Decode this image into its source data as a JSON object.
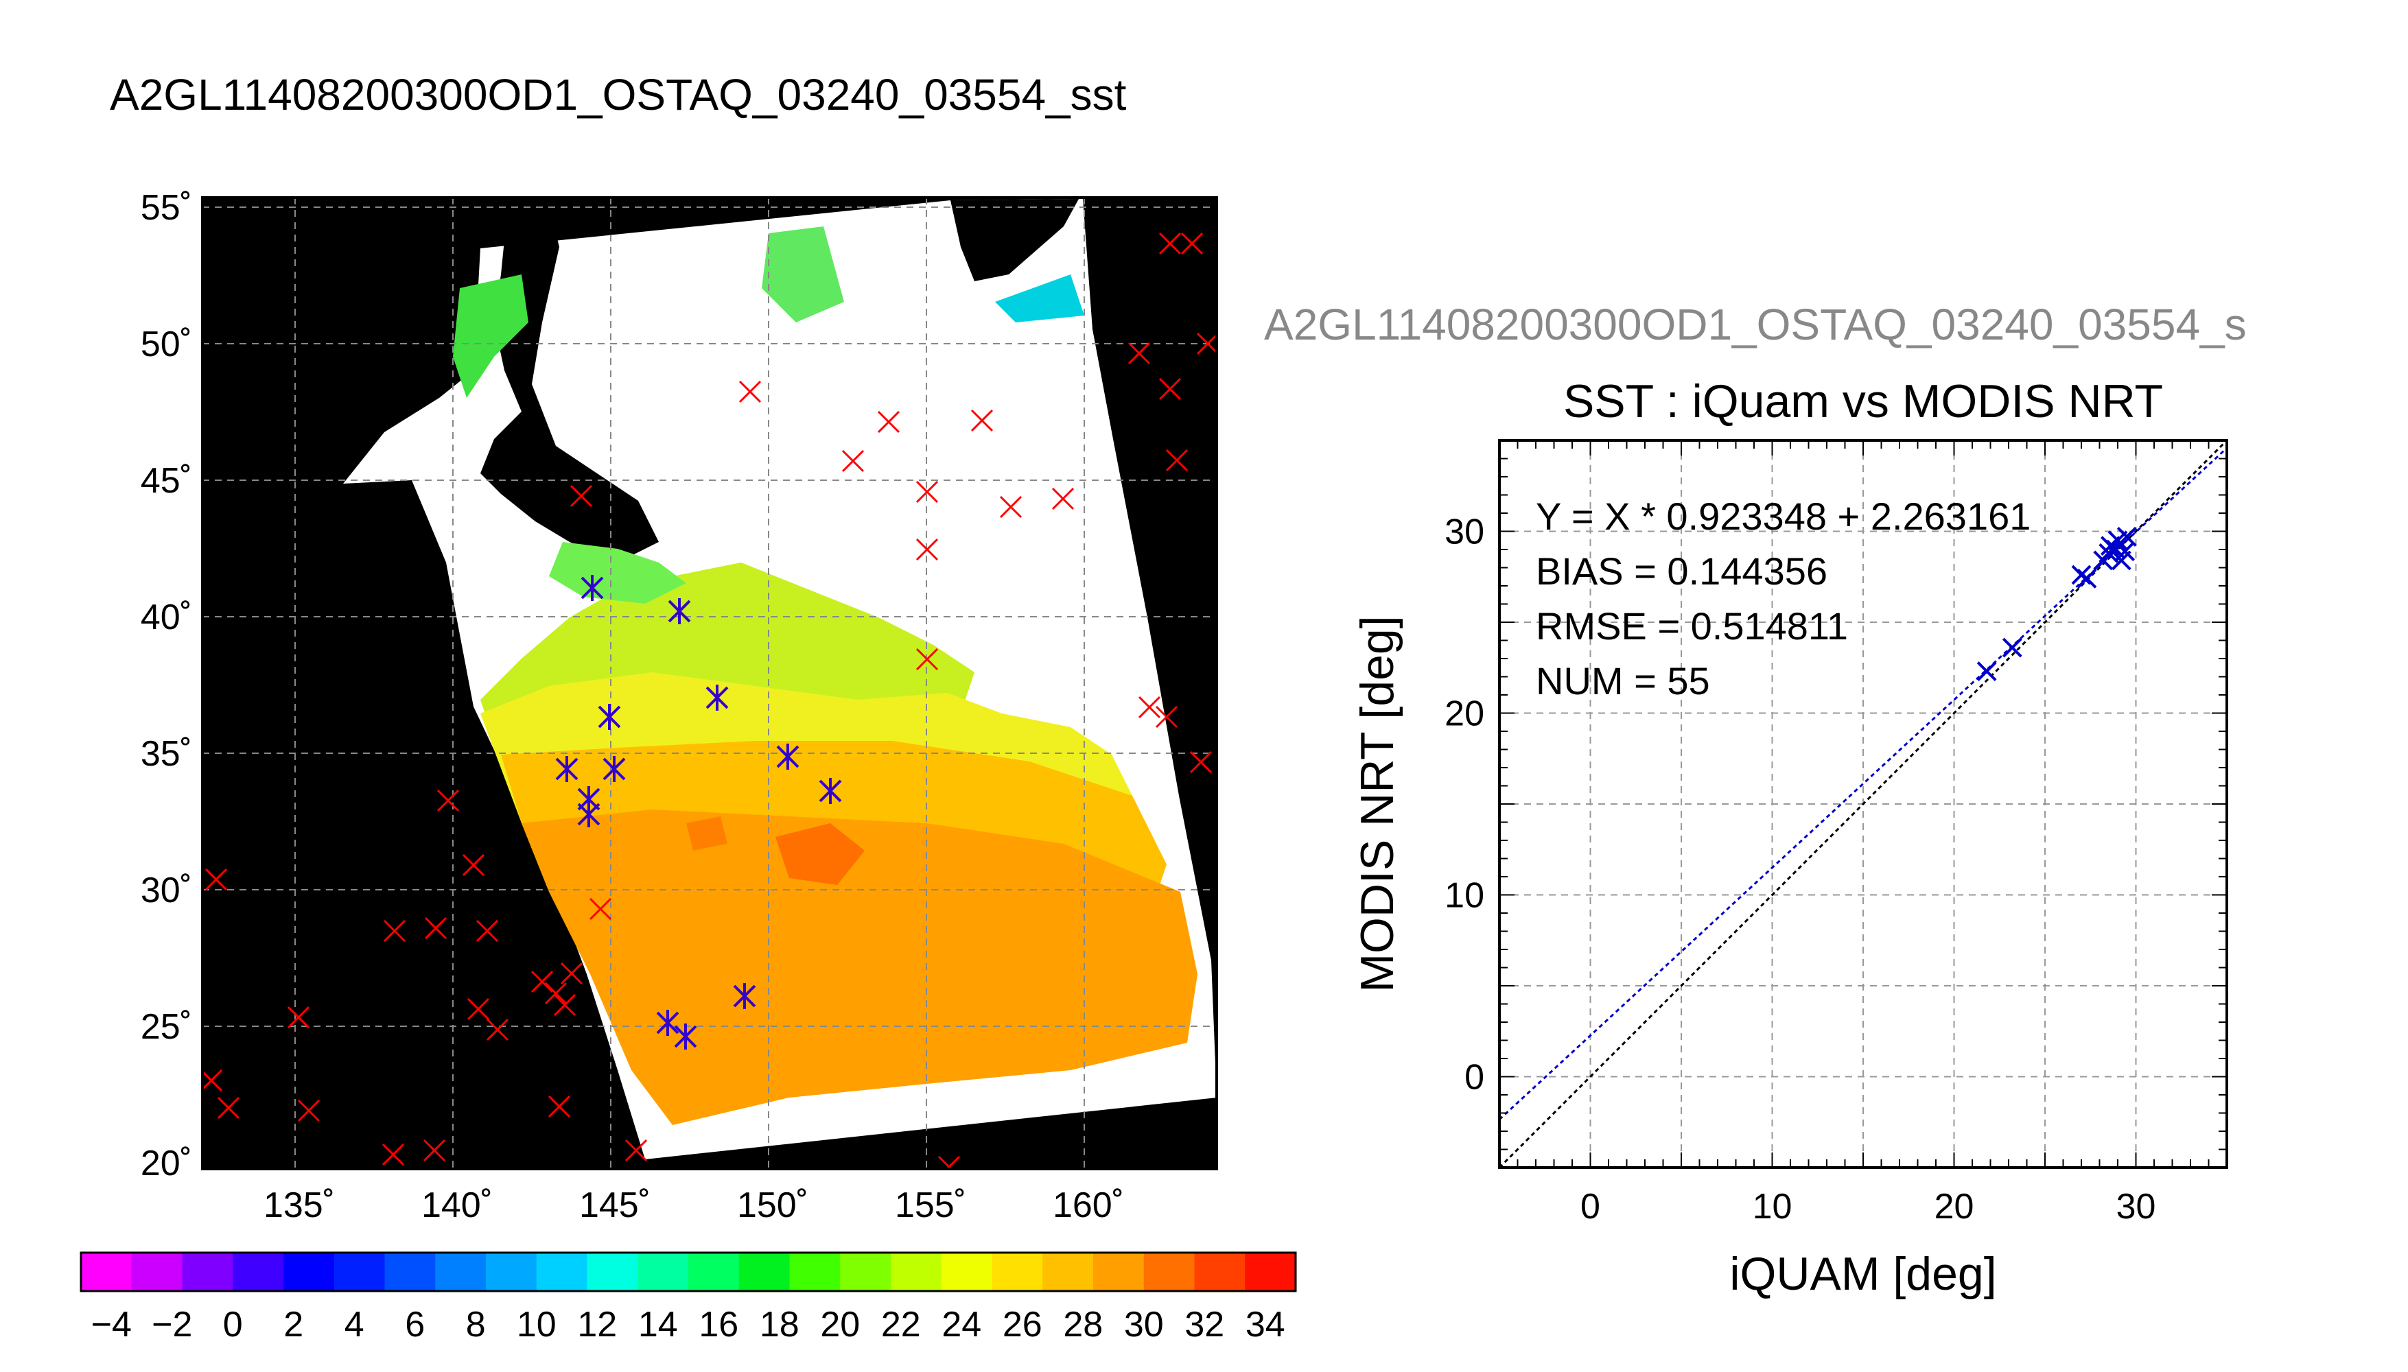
{
  "main_title": "A2GL11408200300OD1_OSTAQ_03240_03554_sst",
  "map_panel": {
    "lat_ticks": [
      "55˚",
      "50˚",
      "45˚",
      "40˚",
      "35˚",
      "30˚",
      "25˚",
      "20˚"
    ],
    "lon_ticks": [
      "135˚",
      "140˚",
      "145˚",
      "150˚",
      "155˚",
      "160˚"
    ],
    "colorbar_labels": [
      "−4",
      "−2",
      "0",
      "2",
      "4",
      "6",
      "8",
      "10",
      "12",
      "14",
      "16",
      "18",
      "20",
      "22",
      "24",
      "26",
      "28",
      "30",
      "32",
      "34"
    ],
    "colorbar_colors": [
      "#ff00ff",
      "#cc00ff",
      "#8000ff",
      "#4000ff",
      "#0000ff",
      "#0020ff",
      "#0050ff",
      "#0080ff",
      "#00a8ff",
      "#00d0ff",
      "#00ffe0",
      "#00ffa0",
      "#00ff60",
      "#00f020",
      "#40ff00",
      "#80ff00",
      "#c0ff00",
      "#f0ff00",
      "#ffe000",
      "#ffc000",
      "#ffa000",
      "#ff7000",
      "#ff4000",
      "#ff1000"
    ],
    "colors": {
      "land": "#000000",
      "cloud": "#ffffff",
      "buoy_unmatched": "#ff0000",
      "buoy_matched": "#3300cc"
    }
  },
  "chart_data": [
    {
      "type": "scatter",
      "subtitle": "A2GL11408200300OD1_OSTAQ_03240_03554_s",
      "title": "SST : iQuam vs MODIS NRT",
      "xlabel": "iQUAM [deg]",
      "ylabel": "MODIS NRT [deg]",
      "xlim": [
        -5,
        35
      ],
      "ylim": [
        -5,
        35
      ],
      "x_ticks": [
        "0",
        "10",
        "20",
        "30"
      ],
      "y_ticks": [
        "0",
        "10",
        "20",
        "30"
      ],
      "grid": true,
      "stats": {
        "fit": "Y = X * 0.923348 + 2.263161",
        "bias": "BIAS = 0.144356",
        "rmse": "RMSE = 0.514811",
        "num": "NUM = 55"
      },
      "fit_line": {
        "slope": 0.923348,
        "intercept": 2.263161,
        "color": "#0000cc"
      },
      "identity_line": {
        "slope": 1,
        "intercept": 0,
        "color": "#000000"
      },
      "points": [
        [
          21.8,
          22.3
        ],
        [
          23.2,
          23.6
        ],
        [
          27.0,
          27.6
        ],
        [
          27.3,
          27.4
        ],
        [
          28.5,
          28.8
        ],
        [
          28.9,
          29.0
        ],
        [
          29.2,
          28.4
        ],
        [
          29.5,
          29.7
        ],
        [
          28.6,
          29.2
        ],
        [
          29.4,
          28.9
        ],
        [
          28.2,
          28.4
        ],
        [
          29.0,
          29.5
        ]
      ],
      "point_color": "#0000cc"
    }
  ]
}
